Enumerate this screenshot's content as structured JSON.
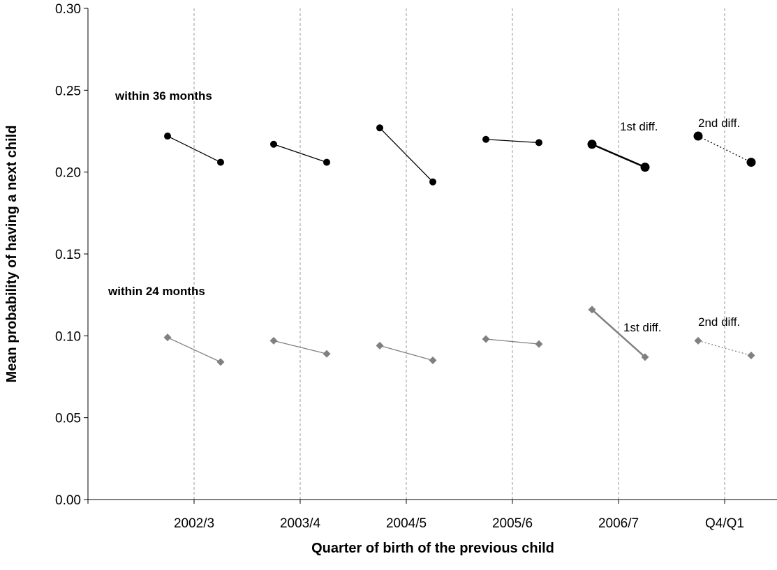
{
  "chart_data": {
    "type": "line",
    "title": "",
    "xlabel": "Quarter of birth of the previous child",
    "ylabel": "Mean probability of having a next child",
    "ylim": [
      0,
      0.3
    ],
    "yticks": [
      "0.00",
      "0.05",
      "0.10",
      "0.15",
      "0.20",
      "0.25",
      "0.30"
    ],
    "categories": [
      "2002/3",
      "2003/4",
      "2004/5",
      "2005/6",
      "2006/7",
      "Q4/Q1"
    ],
    "grid": "vertical dashed separators between groups",
    "series": [
      {
        "name": "within 36 months",
        "color": "#000000",
        "marker": "circle",
        "pairs": [
          [
            0.222,
            0.206
          ],
          [
            0.217,
            0.206
          ],
          [
            0.227,
            0.194
          ],
          [
            0.22,
            0.218
          ],
          [
            0.217,
            0.203
          ],
          [
            0.222,
            0.206
          ]
        ]
      },
      {
        "name": "within 24 months",
        "color": "#808080",
        "marker": "diamond",
        "pairs": [
          [
            0.099,
            0.084
          ],
          [
            0.097,
            0.089
          ],
          [
            0.094,
            0.085
          ],
          [
            0.098,
            0.095
          ],
          [
            0.116,
            0.087
          ],
          [
            0.097,
            0.088
          ]
        ]
      }
    ],
    "annotations": [
      {
        "text": "1st diff.",
        "series": 0,
        "category": "2006/7"
      },
      {
        "text": "2nd diff.",
        "series": 0,
        "category": "Q4/Q1"
      },
      {
        "text": "1st diff.",
        "series": 1,
        "category": "2006/7"
      },
      {
        "text": "2nd diff.",
        "series": 1,
        "category": "Q4/Q1"
      }
    ]
  }
}
